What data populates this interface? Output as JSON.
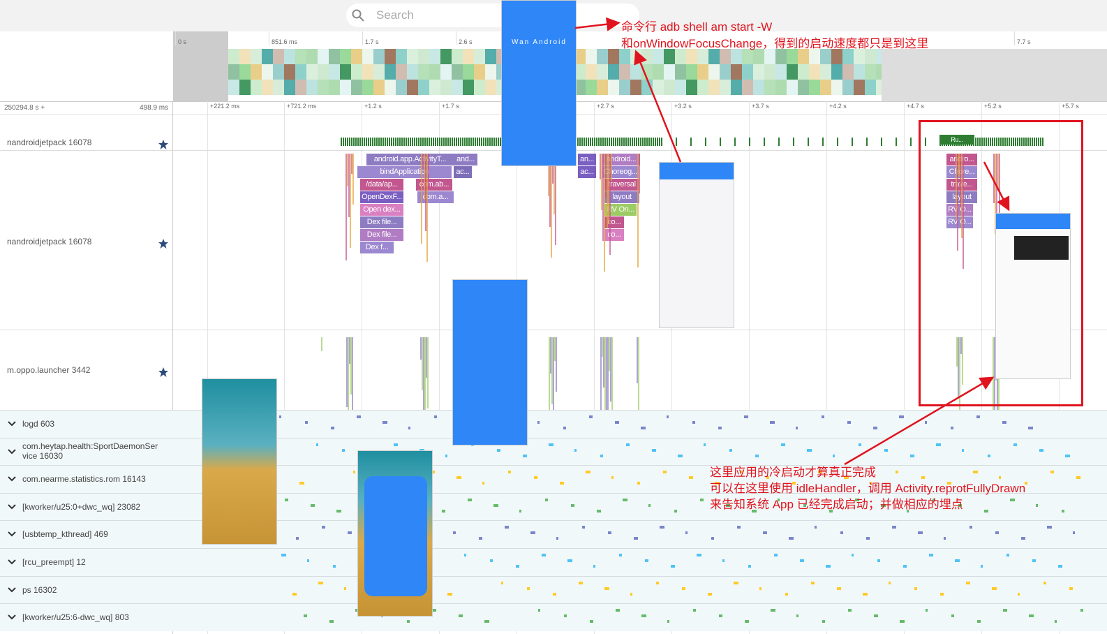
{
  "search": {
    "placeholder": "Search"
  },
  "overview": {
    "ticks": [
      "0 s",
      "851.6 ms",
      "1.7 s",
      "2.6 s",
      "7.7 s"
    ]
  },
  "ruler": {
    "offset": "250294.8 s +",
    "span": "498.9 ms",
    "ticks": [
      "+221.2 ms",
      "+721.2 ms",
      "+1.2 s",
      "+1.7 s",
      "+2.7 s",
      "+3.2 s",
      "+3.7 s",
      "+4.2 s",
      "+4.7 s",
      "+5.2 s",
      "+5.7 s"
    ]
  },
  "tracks": [
    "nandroidjetpack 16078",
    "nandroidjetpack 16078",
    "m.oppo.launcher 3442"
  ],
  "groups": [
    "logd 603",
    "com.heytap.health:SportDaemonSer vice 16030",
    "com.nearme.statistics.rom 16143",
    "[kworker/u25:0+dwc_wq] 23082",
    "[usbtemp_kthread] 469",
    "[rcu_preempt] 12",
    "ps 16302",
    "[kworker/u25:6-dwc_wq] 803"
  ],
  "slices": [
    "android.app.ActivityT...",
    "and...",
    "bindApplication",
    "ac...",
    "/data/ap...",
    "com.ab...",
    "OpenDexF...",
    "com.a...",
    "Open dex...",
    "Dex file...",
    "Dex file...",
    "Dex f...",
    "an...",
    "android...",
    "ac...",
    "Choreog...",
    "traversal",
    "layout",
    "RV On...",
    "co...",
    "co...",
    "andro...",
    "Chore...",
    "trave...",
    "layout",
    "RV O...",
    "RV O...",
    "Ru..."
  ],
  "phone": {
    "title": "Wan Android"
  },
  "annotations": {
    "top": [
      "命令行 adb shell am start -W",
      "和onWindowFocusChange，得到的启动速度都只是到这里"
    ],
    "bottom": [
      "这里应用的冷启动才算真正完成",
      "可以在这里使用 idleHandler，调用 Activity.reprotFullyDrawn",
      "来告知系统 App 已经完成启动；并做相应的埋点"
    ]
  }
}
